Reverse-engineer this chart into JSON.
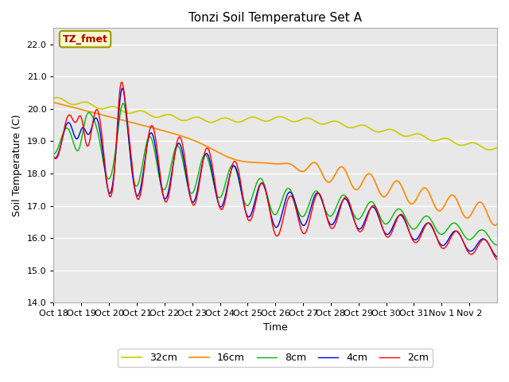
{
  "title": "Tonzi Soil Temperature Set A",
  "xlabel": "Time",
  "ylabel": "Soil Temperature (C)",
  "annotation": "TZ_fmet",
  "ylim": [
    14.0,
    22.5
  ],
  "yticks": [
    14.0,
    15.0,
    16.0,
    17.0,
    18.0,
    19.0,
    20.0,
    21.0,
    22.0
  ],
  "xtick_labels": [
    "Oct 18",
    "Oct 19",
    "Oct 20",
    "Oct 21",
    "Oct 22",
    "Oct 23",
    "Oct 24",
    "Oct 25",
    "Oct 26",
    "Oct 27",
    "Oct 28",
    "Oct 29",
    "Oct 30",
    "Oct 31",
    "Nov 1",
    "Nov 2"
  ],
  "series_colors": [
    "#ff0000",
    "#0000dd",
    "#00bb00",
    "#ff8800",
    "#cccc00"
  ],
  "series_labels": [
    "2cm",
    "4cm",
    "8cm",
    "16cm",
    "32cm"
  ],
  "bg_color": "#e8e8e8",
  "fig_width": 6.4,
  "fig_height": 4.8,
  "dpi": 100
}
